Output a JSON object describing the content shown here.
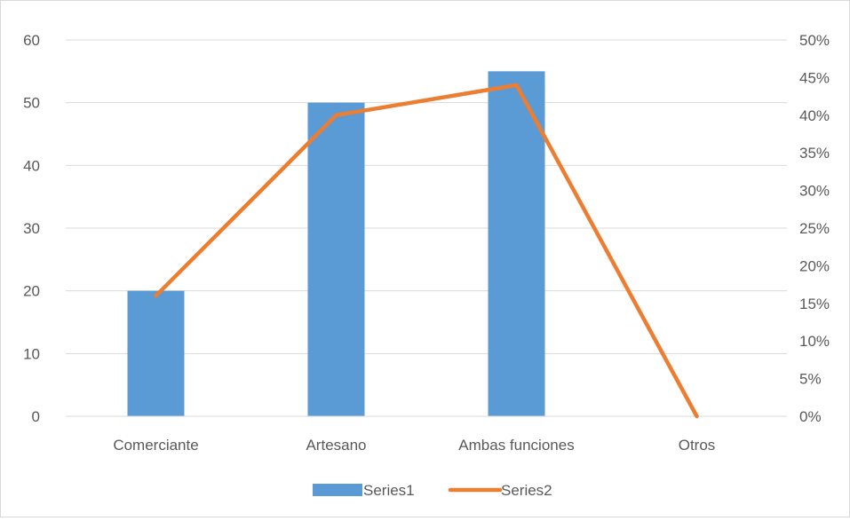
{
  "chart_data": {
    "type": "bar",
    "combo": "bar + line (secondary axis)",
    "title": "",
    "categories": [
      "Comerciante",
      "Artesano",
      "Ambas funciones",
      "Otros"
    ],
    "series": [
      {
        "name": "Series1",
        "type": "bar",
        "axis": "primary",
        "values": [
          20,
          50,
          55,
          0
        ],
        "color": "#5b9bd5"
      },
      {
        "name": "Series2",
        "type": "line",
        "axis": "secondary",
        "values": [
          0.16,
          0.4,
          0.44,
          0.0
        ],
        "color": "#ed7d31"
      }
    ],
    "y_primary": {
      "range": [
        0,
        60
      ],
      "ticks": [
        "0",
        "10",
        "20",
        "30",
        "40",
        "50",
        "60"
      ]
    },
    "y_secondary": {
      "range": [
        0,
        0.5
      ],
      "ticks": [
        "0%",
        "5%",
        "10%",
        "15%",
        "20%",
        "25%",
        "30%",
        "35%",
        "40%",
        "45%",
        "50%"
      ]
    },
    "grid": true,
    "legend": "bottom",
    "colors": {
      "gridline": "#d9d9d9",
      "text": "#595959"
    }
  }
}
